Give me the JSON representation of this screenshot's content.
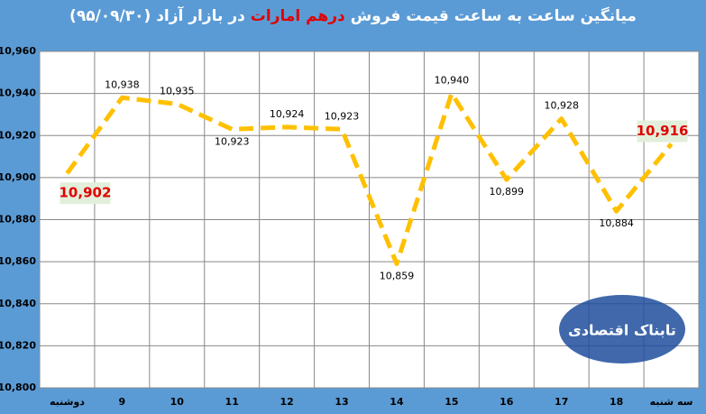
{
  "chart_data": {
    "type": "line",
    "title": {
      "before": "میانگین ساعت به ساعت قیمت فروش",
      "highlight": "درهم امارات",
      "after": "در بازار آزاد (۹۵/۰۹/۳۰)"
    },
    "categories": [
      "دوشنبه",
      "9",
      "10",
      "11",
      "12",
      "13",
      "14",
      "15",
      "16",
      "17",
      "18",
      "سه شنبه"
    ],
    "series": [
      {
        "color": "#ffc000",
        "values": [
          10902,
          10938,
          10935,
          10923,
          10924,
          10923,
          10859,
          10940,
          10899,
          10928,
          10884,
          10916
        ],
        "value_labels": [
          "10,902",
          "10,938",
          "10,935",
          "10,923",
          "10,924",
          "10,923",
          "10,859",
          "10,940",
          "10,899",
          "10,928",
          "10,884",
          "10,916"
        ]
      }
    ],
    "ylim": [
      10800,
      10960
    ],
    "yticks": [
      {
        "value": 10800,
        "label": "10,800"
      },
      {
        "value": 10820,
        "label": "10,820"
      },
      {
        "value": 10840,
        "label": "10,840"
      },
      {
        "value": 10860,
        "label": "10,860"
      },
      {
        "value": 10880,
        "label": "10,880"
      },
      {
        "value": 10900,
        "label": "10,900"
      },
      {
        "value": 10920,
        "label": "10,920"
      },
      {
        "value": 10940,
        "label": "10,940"
      },
      {
        "value": 10960,
        "label": "10,960"
      }
    ],
    "grid": true,
    "watermark": "تابناک اقتصادی"
  }
}
